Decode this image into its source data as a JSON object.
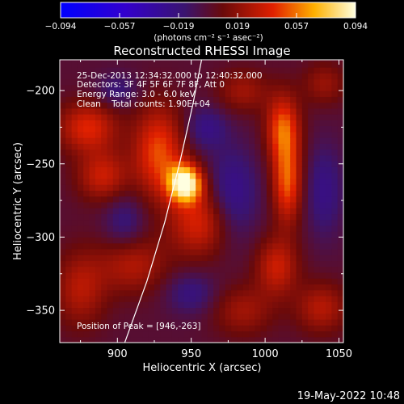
{
  "chart_data": {
    "type": "heatmap",
    "title": "Reconstructed RHESSI Image",
    "xlabel": "Heliocentric X (arcsec)",
    "ylabel": "Heliocentric Y (arcsec)",
    "xlim": [
      861,
      1053
    ],
    "ylim": [
      -372,
      -179
    ],
    "x_ticks": [
      900,
      950,
      1000,
      1050
    ],
    "y_ticks": [
      -350,
      -300,
      -250,
      -200
    ],
    "colorbar": {
      "colormap": "blue-purple-red-yellow-white",
      "range": [
        -0.094,
        0.094
      ],
      "ticks": [
        "−0.094",
        "−0.057",
        "−0.019",
        "0.019",
        "0.057",
        "0.094"
      ],
      "units": "(photons cm⁻² s⁻¹ asec⁻²)"
    },
    "annotations": [
      "25-Dec-2013 12:34:32.000 to 12:40:32.000",
      "Detectors: 3F 4F 5F 6F 7F 8F, Att 0",
      "Energy Range: 3.0 - 6.0 keV",
      "Clean    Total counts: 1.90E+04",
      "Position of Peak = [946,-263]"
    ],
    "peak": {
      "x": 946,
      "y": -263,
      "value": 0.094
    },
    "limb_curve": [
      [
        905,
        -372
      ],
      [
        920,
        -330
      ],
      [
        932,
        -290
      ],
      [
        942,
        -250
      ],
      [
        951,
        -210
      ],
      [
        957,
        -179
      ]
    ],
    "features": [
      {
        "x": 946,
        "y": -263,
        "sx": 8,
        "sy": 9,
        "amp": 0.094
      },
      {
        "x": 928,
        "y": -242,
        "sx": 12,
        "sy": 22,
        "amp": 0.05
      },
      {
        "x": 955,
        "y": -290,
        "sx": 14,
        "sy": 16,
        "amp": 0.04
      },
      {
        "x": 880,
        "y": -225,
        "sx": 14,
        "sy": 12,
        "amp": 0.042
      },
      {
        "x": 890,
        "y": -258,
        "sx": 12,
        "sy": 12,
        "amp": 0.036
      },
      {
        "x": 910,
        "y": -318,
        "sx": 16,
        "sy": 14,
        "amp": 0.03
      },
      {
        "x": 875,
        "y": -335,
        "sx": 12,
        "sy": 18,
        "amp": 0.03
      },
      {
        "x": 1012,
        "y": -225,
        "sx": 8,
        "sy": 16,
        "amp": 0.05
      },
      {
        "x": 1015,
        "y": -262,
        "sx": 7,
        "sy": 20,
        "amp": 0.052
      },
      {
        "x": 1008,
        "y": -320,
        "sx": 10,
        "sy": 14,
        "amp": 0.036
      },
      {
        "x": 1038,
        "y": -348,
        "sx": 12,
        "sy": 12,
        "amp": 0.03
      },
      {
        "x": 985,
        "y": -200,
        "sx": 12,
        "sy": 10,
        "amp": 0.024
      },
      {
        "x": 985,
        "y": -350,
        "sx": 14,
        "sy": 12,
        "amp": 0.024
      },
      {
        "x": 1040,
        "y": -195,
        "sx": 10,
        "sy": 10,
        "amp": 0.022
      },
      {
        "x": 978,
        "y": -270,
        "sx": 12,
        "sy": 22,
        "amp": -0.026
      },
      {
        "x": 960,
        "y": -225,
        "sx": 10,
        "sy": 10,
        "amp": -0.022
      },
      {
        "x": 1040,
        "y": -268,
        "sx": 9,
        "sy": 22,
        "amp": -0.022
      },
      {
        "x": 905,
        "y": -290,
        "sx": 10,
        "sy": 14,
        "amp": -0.02
      },
      {
        "x": 900,
        "y": -200,
        "sx": 10,
        "sy": 8,
        "amp": -0.018
      },
      {
        "x": 950,
        "y": -338,
        "sx": 12,
        "sy": 10,
        "amp": -0.02
      }
    ]
  },
  "footer": {
    "timestamp": "19-May-2022 10:48"
  }
}
